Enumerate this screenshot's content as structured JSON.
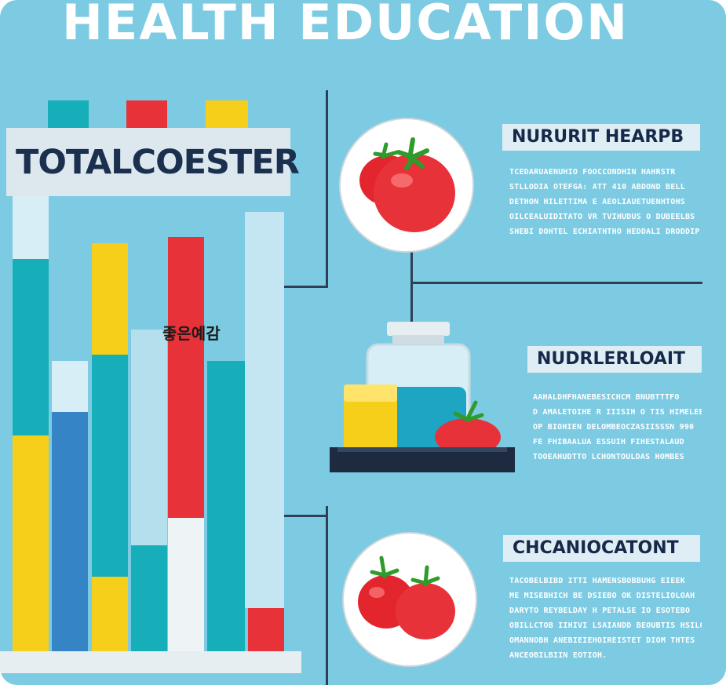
{
  "title": "HEALTH EDUCATION",
  "chart_label": "TOTALCOESTER",
  "overlay_text": "좋은예감",
  "colors": {
    "background": "#7ccbe3",
    "teal": "#16aeb8",
    "red": "#e8323a",
    "yellow": "#f6cf1a",
    "blue": "#3584c6",
    "light": "#d8eef6",
    "navy": "#17294a"
  },
  "sections": [
    {
      "title": "NURURIT HEARPB",
      "icon": "tomato-icon",
      "lines": [
        "TCEDARUAENUHIO FOOCCONDHIN HAHRSTR",
        "STLLODIA OTEFGA: ATT 410 ABDOND BELL",
        "DETHON HILETTIMA E AEOLIAUETUENHTOHS",
        "OILCEALUIDITATO VR TVIHUDUS O DUBEELBS",
        "SHEBI DOHTEL ECHIATHTHO HEDDALI DRODDIP"
      ]
    },
    {
      "title": "NUDRLERLOAIT",
      "icon": "jar-tray-icon",
      "lines": [
        "AAHALDHFHANEBESICHCM BNUBTTTFO",
        "D AMALETOIHE R IIISIH O TIS HIMELEEB",
        "OP BIOHIEN DELOMBEOCZASIISSSN 990",
        "FE FHIBAALUA ESSUIH FIHESTALAUD",
        "TOOEAHUDTTO LCHONTOULDAS HOMBES"
      ]
    },
    {
      "title": "CHCANIOCATONT",
      "icon": "tomatoes-icon",
      "lines": [
        "TACOBELBIBD ITTI HAMENSBOBBUHG EIEEK",
        "ME MISEBHICH BE DSIEBO OK DISTELIOLOAH",
        "DARYTO REYBELDAY H PETALSE IO ESOTEBO",
        "OBILLCTOB IIHIVI LSAIANDD BEOUBTIS HSILO",
        "OMANNOBH ANEBIEIEHOIREISTET DIOM THTES",
        "ANCEOBILBIIN EOTIOH."
      ]
    }
  ]
}
